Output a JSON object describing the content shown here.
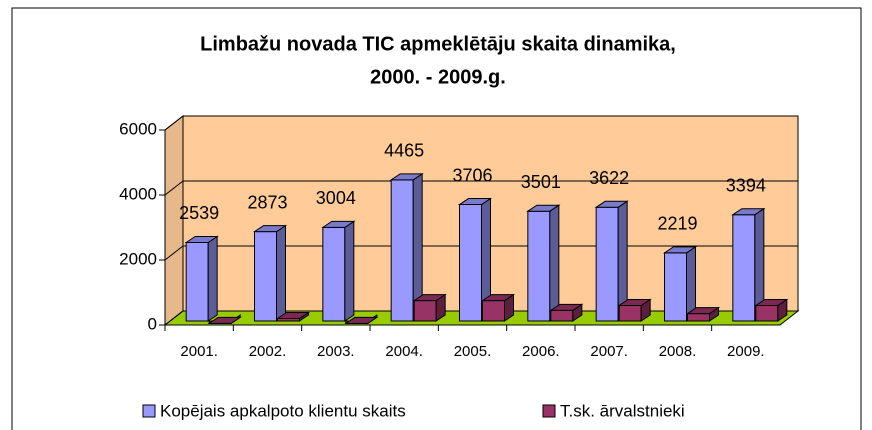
{
  "chart_data": {
    "type": "bar3d",
    "title": [
      "Limbažu novada TIC apmeklētāju skaita dinamika,",
      "2000. - 2009.g."
    ],
    "categories": [
      "2001.",
      "2002.",
      "2003.",
      "2004.",
      "2005.",
      "2006.",
      "2007.",
      "2008.",
      "2009."
    ],
    "series": [
      {
        "name": "Kopējais apkalpoto klientu skaits",
        "color": "#9999ff",
        "values": [
          2539,
          2873,
          3004,
          4465,
          3706,
          3501,
          3622,
          2219,
          3394
        ],
        "data_labels": true
      },
      {
        "name": "T.sk. ārvalstnieki",
        "color": "#993366",
        "values": [
          50,
          200,
          50,
          750,
          750,
          450,
          600,
          350,
          600
        ],
        "data_labels": false
      }
    ],
    "ylim": [
      0,
      6000
    ],
    "yticks": [
      0,
      2000,
      4000,
      6000
    ],
    "grid": true,
    "legend": "bottom"
  }
}
